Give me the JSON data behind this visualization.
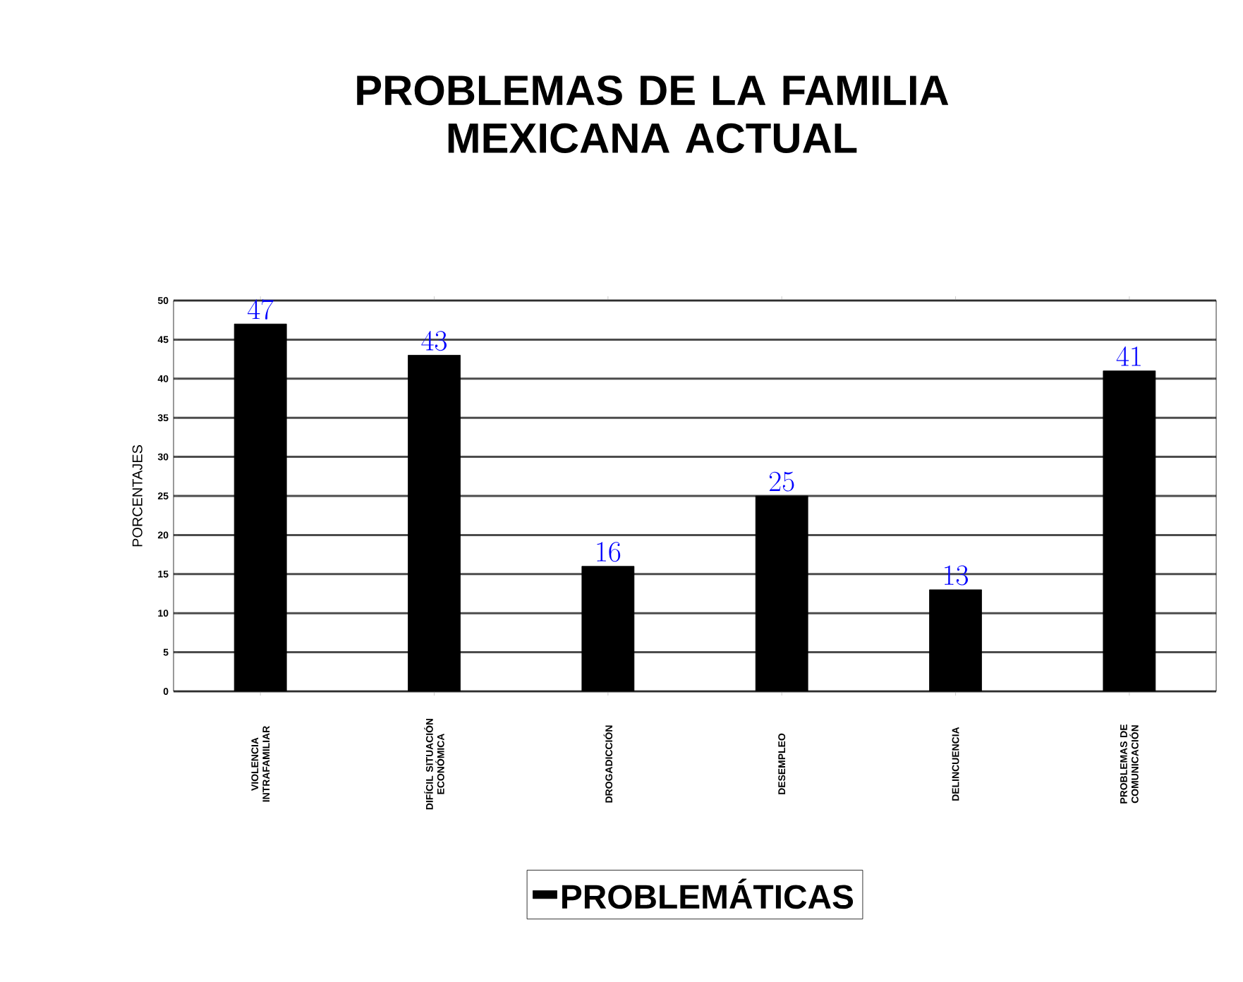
{
  "chart_data": {
    "type": "bar",
    "title": "PROBLEMAS DE LA FAMILIA MEXICANA ACTUAL",
    "ylabel": "PORCENTAJES",
    "categories": [
      "VIOLENCIA INTRAFAMILIAR",
      "DIFÍCIL SITUACIÓN ECONÓMICA",
      "DROGADICCIÓN",
      "DESEMPLEO",
      "DELINCUENCIA",
      "PROBLEMAS DE COMUNICACIÓN"
    ],
    "series": [
      {
        "name": "PROBLEMÁTICAS",
        "color": "#000000",
        "values": [
          47,
          43,
          16,
          25,
          13,
          41
        ]
      }
    ],
    "ylim": [
      0,
      50
    ],
    "yticks": [
      0,
      5,
      10,
      15,
      20,
      25,
      30,
      35,
      40,
      45,
      50
    ],
    "grid": "y",
    "legend": "bottom",
    "data_labels": true
  }
}
